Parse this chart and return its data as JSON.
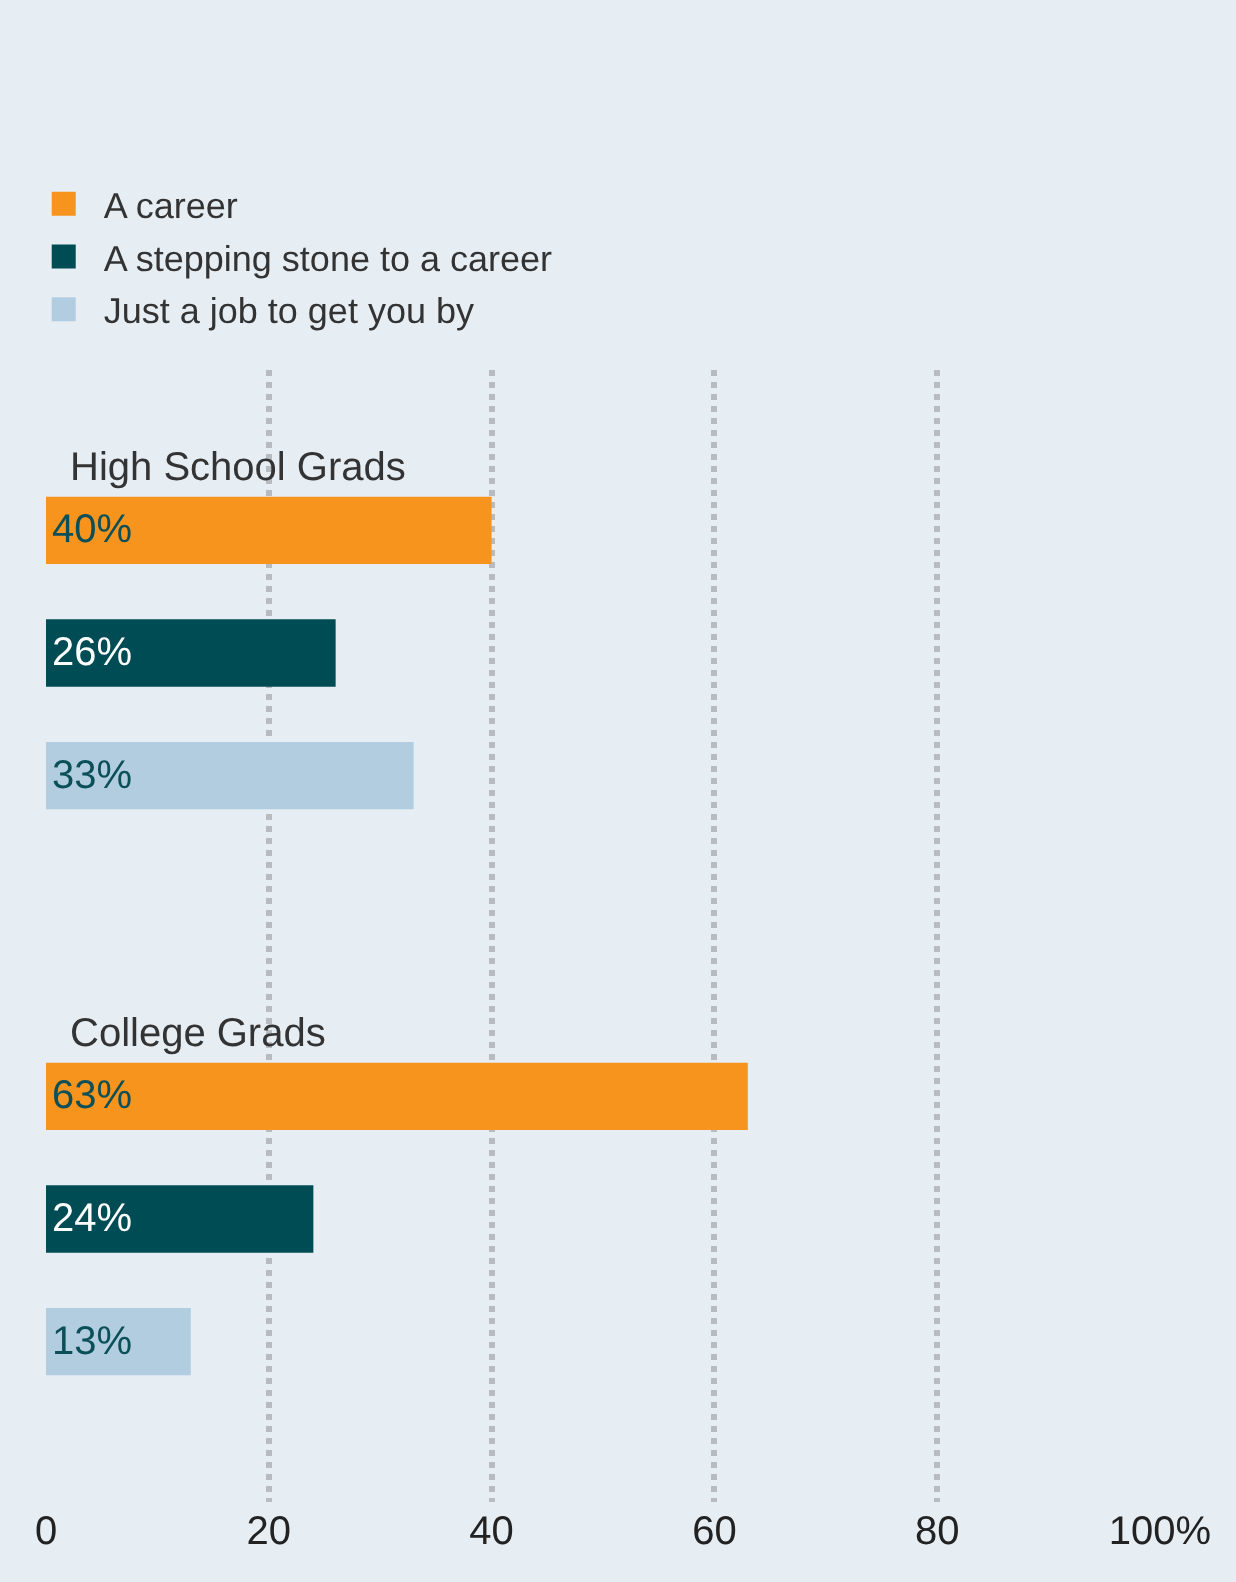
{
  "chart_data": {
    "type": "bar",
    "orientation": "horizontal",
    "categories": [
      "High School Grads",
      "College Grads"
    ],
    "series": [
      {
        "name": "A career",
        "color": "#f7941d",
        "values": [
          40,
          63
        ],
        "value_labels": [
          "40%",
          "63%"
        ]
      },
      {
        "name": "A stepping stone to a career",
        "color": "#004c54",
        "values": [
          26,
          24
        ],
        "value_labels": [
          "26%",
          "24%"
        ]
      },
      {
        "name": "Just a job to get you by",
        "color": "#b3cde0",
        "values": [
          33,
          13
        ],
        "value_labels": [
          "33%",
          "13%"
        ]
      }
    ],
    "xlim": [
      0,
      100
    ],
    "xticks": [
      0,
      20,
      40,
      60,
      80,
      {
        "value": 100,
        "label": "100%"
      }
    ],
    "grid": "x",
    "legend": "top left",
    "tick_labels": "x"
  }
}
